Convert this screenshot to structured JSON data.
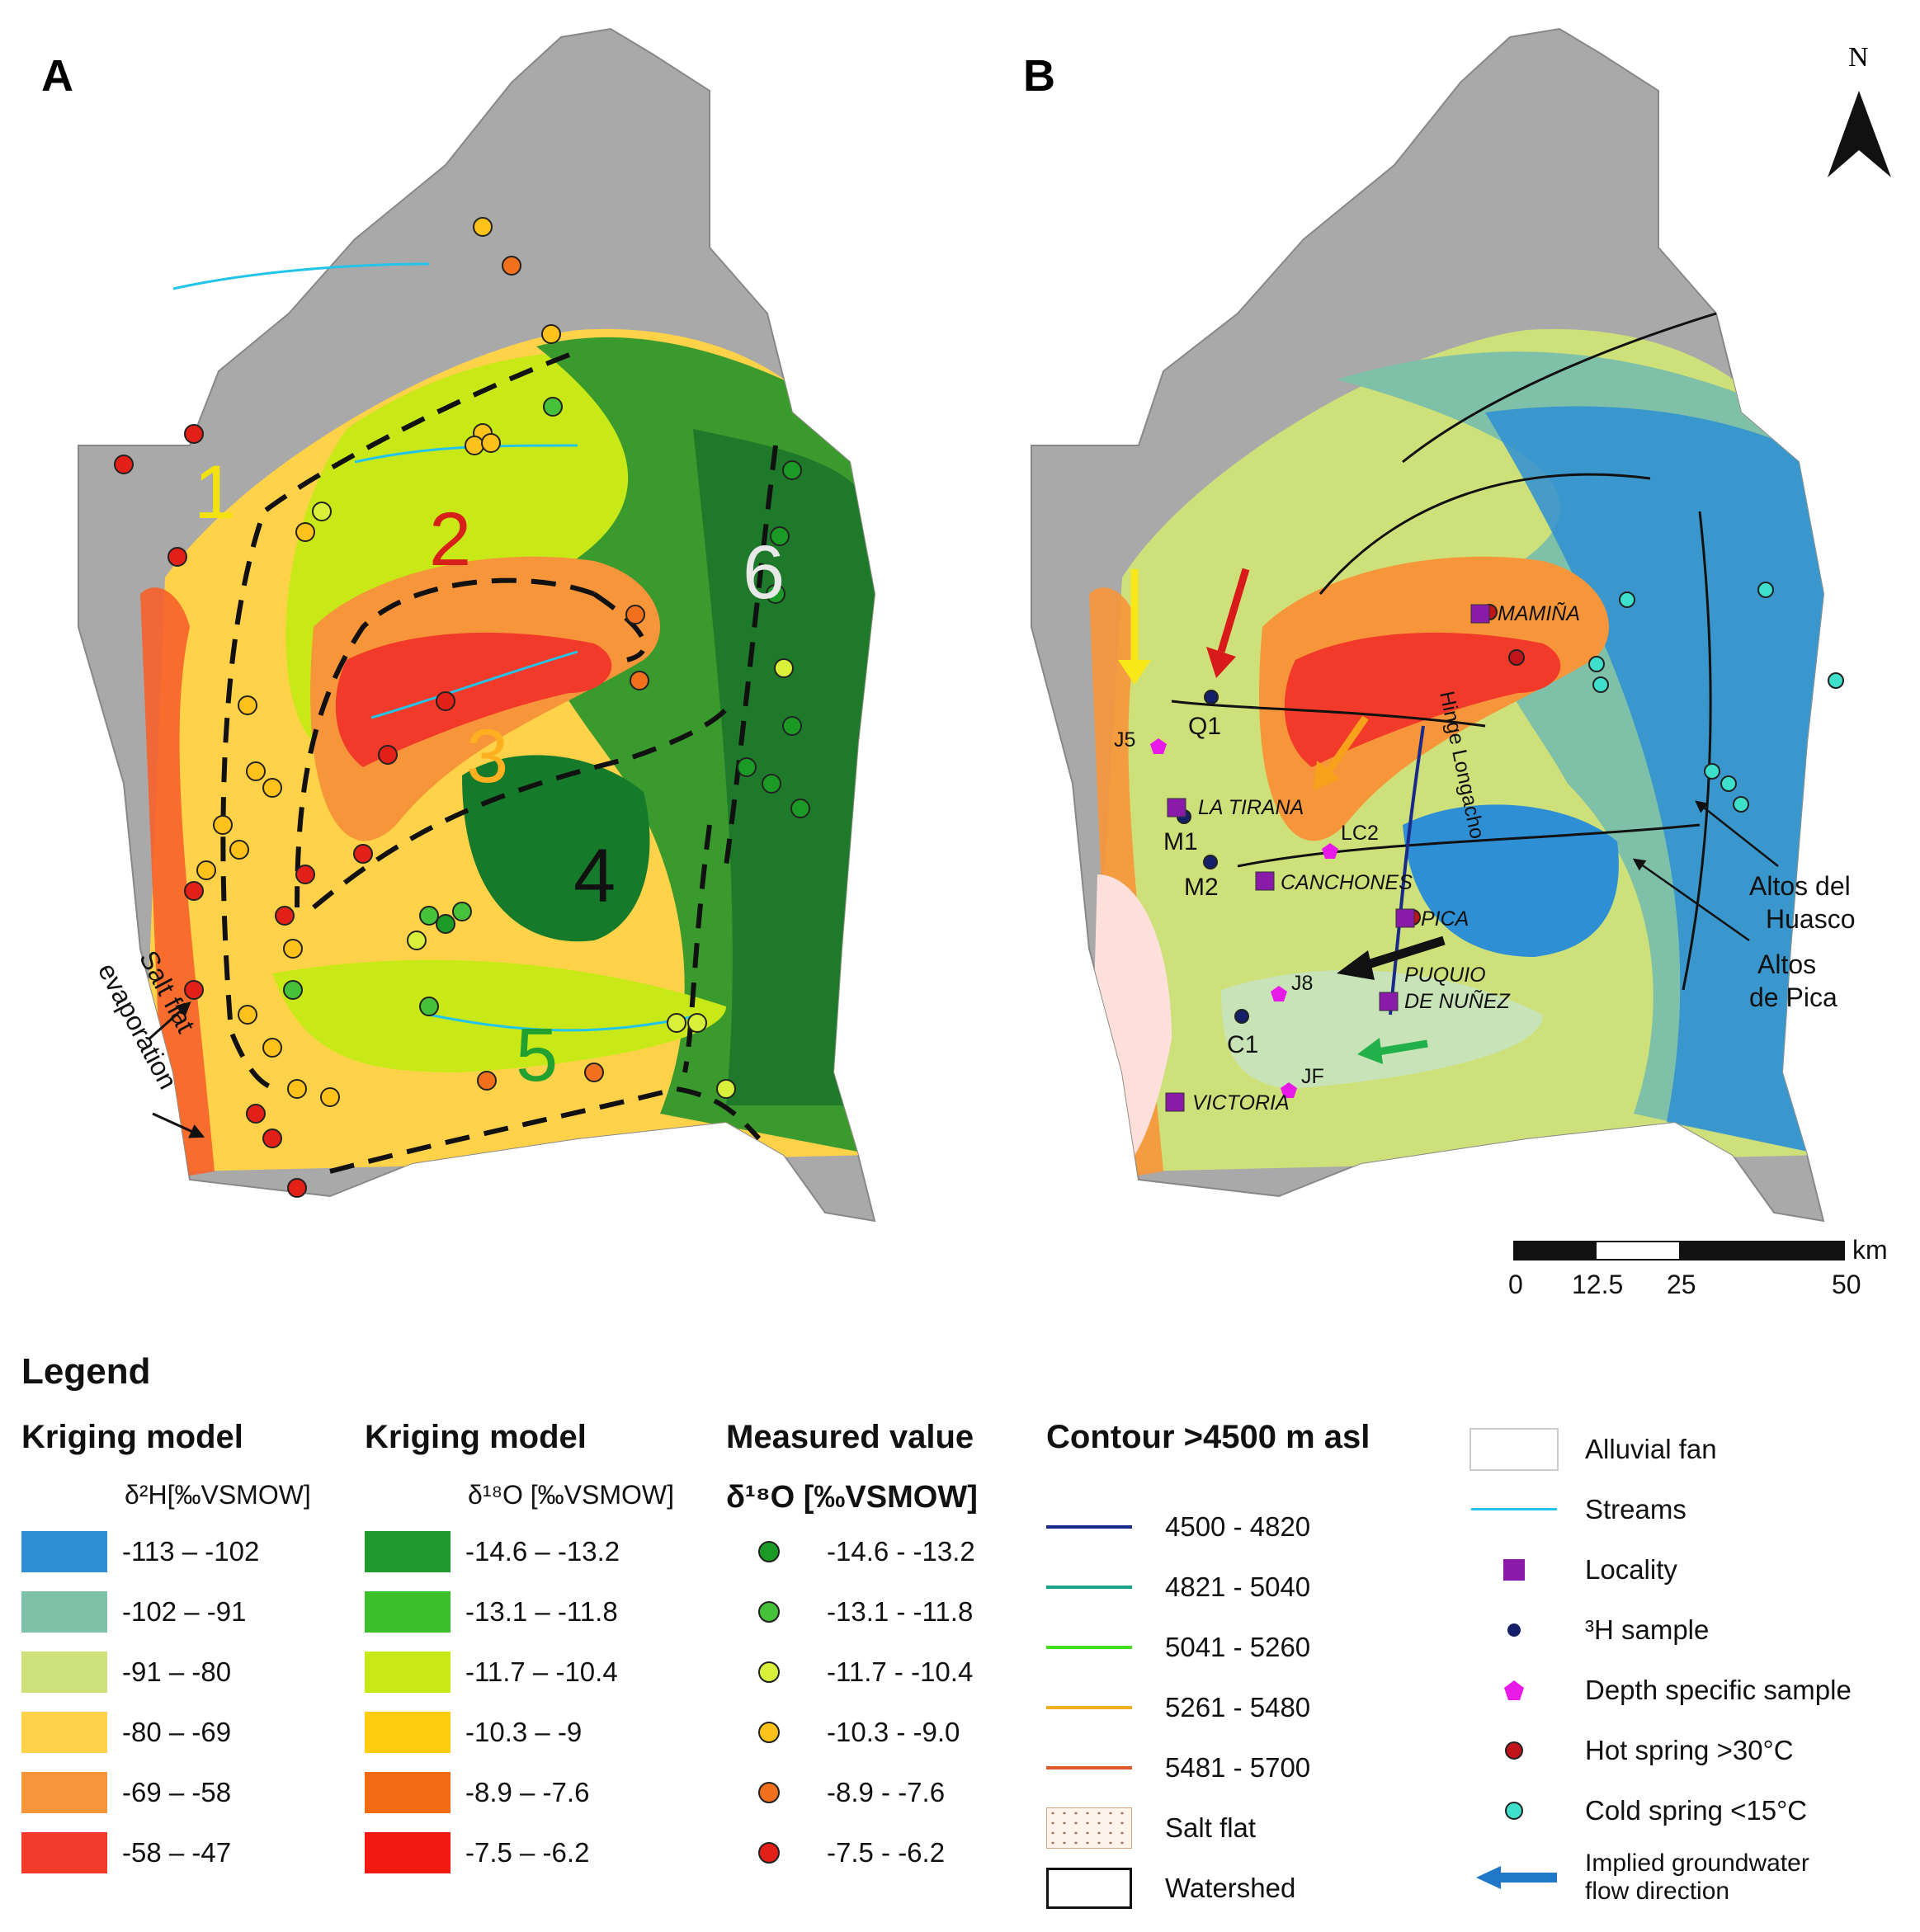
{
  "panels": {
    "a_label": "A",
    "b_label": "B",
    "north": "N"
  },
  "zones": [
    "1",
    "2",
    "3",
    "4",
    "5",
    "6"
  ],
  "colors": {
    "d2h": [
      "#2e8fd4",
      "#7fc1a8",
      "#cde07a",
      "#ffd24a",
      "#f7953a",
      "#f23a2a"
    ],
    "d18o": [
      "#1e9a2e",
      "#3bc02b",
      "#c8e817",
      "#ffcc10",
      "#f26a12",
      "#f21a10"
    ],
    "points": [
      "#1c9a26",
      "#45c23a",
      "#d8f03a",
      "#ffc21a",
      "#f0701e",
      "#e32018"
    ],
    "contour": [
      "#1a2a8a",
      "#1aa58a",
      "#44e020",
      "#f0b022",
      "#e05a2a"
    ]
  },
  "annotations": {
    "salt_flat_1": "Salt flat",
    "salt_flat_2": "evaporation",
    "hinge": "Hinge Longacho",
    "altos_huasco_1": "Altos del",
    "altos_huasco_2": "Huasco",
    "altos_pica_1": "Altos",
    "altos_pica_2": "de Pica"
  },
  "localities": [
    "MAMIÑA",
    "LA TIRANA",
    "CANCHONES",
    "PICA",
    "PUQUIO",
    "DE NUÑEZ",
    "VICTORIA"
  ],
  "samples": [
    "Q1",
    "M1",
    "M2",
    "C1",
    "J5",
    "LC2",
    "J8",
    "JF"
  ],
  "scale": {
    "unit": "km",
    "ticks": [
      "0",
      "12.5",
      "25",
      "50"
    ]
  },
  "legend": {
    "title": "Legend",
    "kriging_d2h": {
      "header": "Kriging model",
      "sub": "δ²H[‰VSMOW]",
      "items": [
        "-113 – -102",
        "-102 – -91",
        "-91 – -80",
        "-80 – -69",
        "-69 – -58",
        "-58 – -47"
      ]
    },
    "kriging_d18o": {
      "header": "Kriging model",
      "sub": "δ¹⁸O [‰VSMOW]",
      "items": [
        "-14.6 – -13.2",
        "-13.1 – -11.8",
        "-11.7 – -10.4",
        "-10.3 – -9",
        "-8.9 – -7.6",
        "-7.5 – -6.2"
      ]
    },
    "measured": {
      "header": "Measured value",
      "sub": "δ¹⁸O [‰VSMOW]",
      "items": [
        "-14.6 - -13.2",
        "-13.1 - -11.8",
        "-11.7 - -10.4",
        "-10.3 - -9.0",
        "-8.9 - -7.6",
        "-7.5 - -6.2"
      ]
    },
    "contour": {
      "header": "Contour >4500 m asl",
      "items": [
        "4500 - 4820",
        "4821 - 5040",
        "5041 - 5260",
        "5261 - 5480",
        "5481 - 5700"
      ],
      "salt_flat": "Salt flat",
      "watershed": "Watershed"
    },
    "symbols": {
      "alluvial": "Alluvial fan",
      "streams": "Streams",
      "locality": "Locality",
      "h3": "³H sample",
      "depth": "Depth specific sample",
      "hot": "Hot spring >30°C",
      "cold": "Cold spring <15°C",
      "flow_1": "Implied groundwater",
      "flow_2": "flow direction"
    }
  }
}
